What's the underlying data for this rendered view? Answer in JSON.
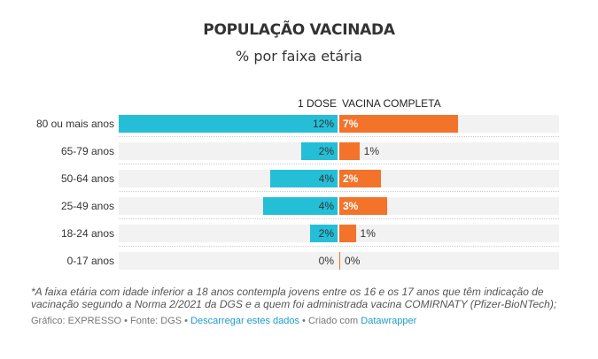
{
  "chart_data": {
    "type": "bar",
    "title": "POPULAÇÃO VACINADA",
    "subtitle": "% por faixa etária",
    "categories": [
      "80 ou mais anos",
      "65-79 anos",
      "50-64 anos",
      "25-49 anos",
      "18-24 anos",
      "0-17 anos"
    ],
    "series": [
      {
        "name": "1 DOSE",
        "color": "#24bfd7",
        "values": [
          12.0,
          2.0,
          3.7,
          4.1,
          1.5,
          0.0
        ],
        "labels": [
          "12%",
          "2%",
          "4%",
          "4%",
          "2%",
          "0%"
        ]
      },
      {
        "name": "VACINA COMPLETA",
        "color": "#f4732a",
        "values": [
          6.5,
          1.1,
          2.3,
          2.6,
          0.9,
          0.05
        ],
        "labels": [
          "7%",
          "1%",
          "2%",
          "3%",
          "1%",
          "0%"
        ]
      }
    ],
    "xlim": [
      0,
      24.1
    ]
  },
  "footer": {
    "note": "*A faixa etária com idade inferior a 18 anos contempla jovens entre os 16 e os 17 anos que têm indicação de vacinação segundo a Norma 2/2021 da DGS e a quem foi administrada vacina COMIRNATY (Pfizer-BioNTech);",
    "source_prefix": "Gráfico: EXPRESSO • Fonte: DGS • ",
    "download_link": "Descarregar estes dados",
    "created_with": " • Criado com ",
    "datawrapper_link": "Datawrapper"
  }
}
